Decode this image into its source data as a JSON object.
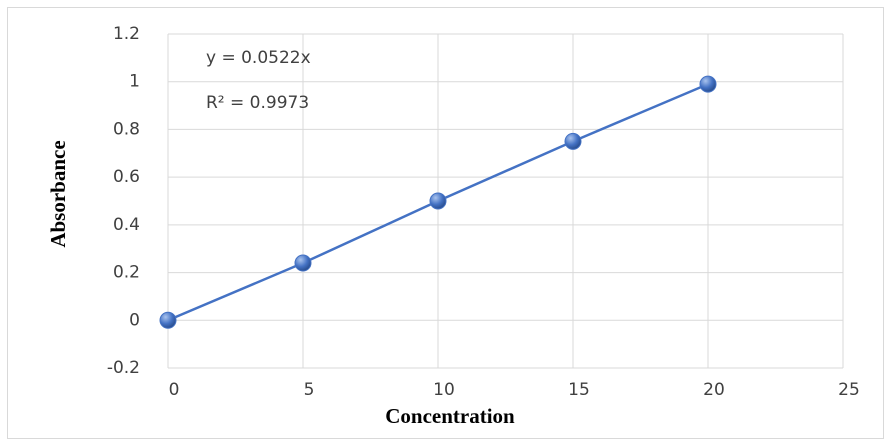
{
  "chart_data": {
    "type": "scatter",
    "x_label": "Concentration",
    "y_label": "Absorbance",
    "annotations": [
      "y = 0.0522x",
      "R² = 0.9973"
    ],
    "x": [
      0,
      5,
      10,
      15,
      20
    ],
    "values": [
      0,
      0.24,
      0.5,
      0.75,
      0.99
    ],
    "color": "#4472c4",
    "xlim": [
      0,
      25
    ],
    "xticks": [
      0,
      5,
      10,
      15,
      20,
      25
    ],
    "ylim": [
      -0.2,
      1.2
    ],
    "yticks": [
      -0.2,
      0,
      0.2,
      0.4,
      0.6,
      0.8,
      1,
      1.2
    ],
    "grid": true
  }
}
